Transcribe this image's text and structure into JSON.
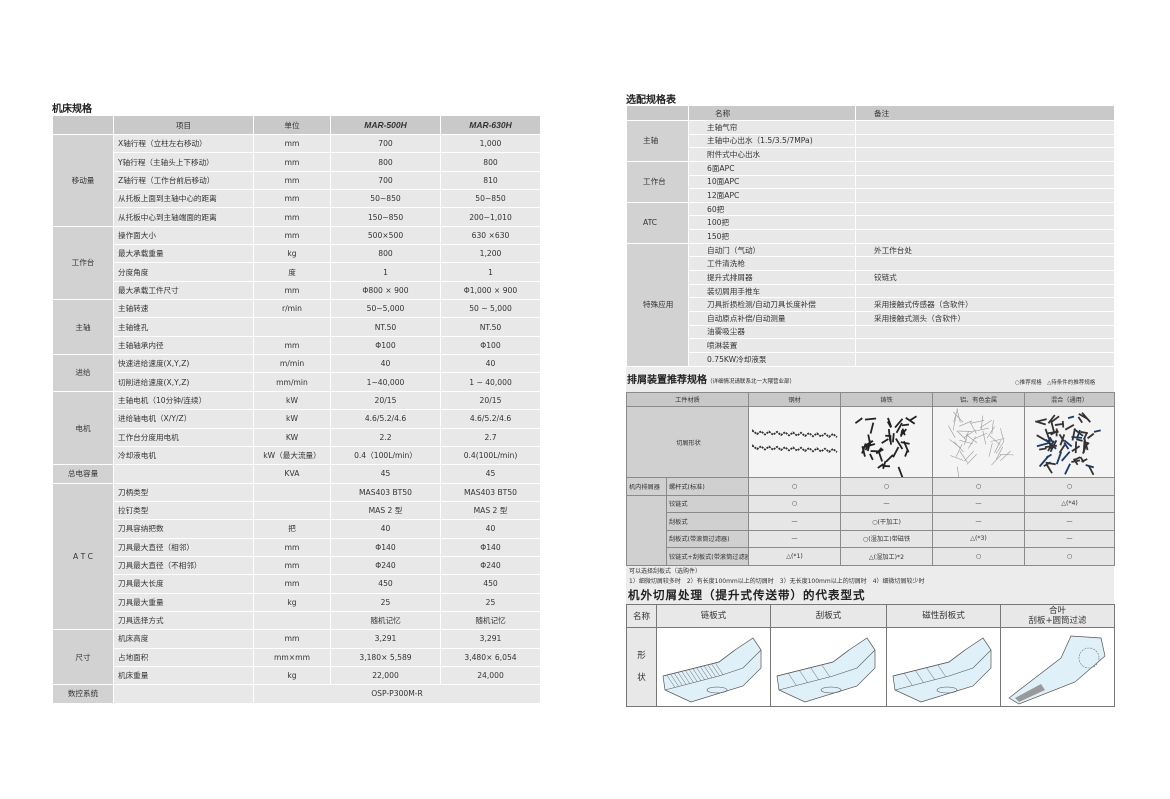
{
  "left": {
    "title": "机床规格",
    "headers": [
      "",
      "项目",
      "单位",
      "MAR-500H",
      "MAR-630H"
    ],
    "groups": [
      {
        "name": "移动量",
        "rows": [
          [
            "X轴行程（立柱左右移动）",
            "mm",
            "700",
            "1,000"
          ],
          [
            "Y轴行程（主轴头上下移动）",
            "mm",
            "800",
            "800"
          ],
          [
            "Z轴行程（工作台前后移动）",
            "mm",
            "700",
            "810"
          ],
          [
            "从托板上面到主轴中心的距离",
            "mm",
            "50~850",
            "50~850"
          ],
          [
            "从托板中心到主轴端面的距离",
            "mm",
            "150~850",
            "200~1,010"
          ]
        ]
      },
      {
        "name": "工作台",
        "rows": [
          [
            "操作面大小",
            "mm",
            "500×500",
            "630 ×630"
          ],
          [
            "最大承载重量",
            "kg",
            "800",
            "1,200"
          ],
          [
            "分度角度",
            "度",
            "1",
            "1"
          ],
          [
            "最大承载工件尺寸",
            "mm",
            "Φ800 × 900",
            "Φ1,000 × 900"
          ]
        ]
      },
      {
        "name": "主轴",
        "rows": [
          [
            "主轴转速",
            "r/min",
            "50~5,000",
            "50 ~ 5,000"
          ],
          [
            "主轴锥孔",
            "",
            "NT.50",
            "NT.50"
          ],
          [
            "主轴轴承内径",
            "mm",
            "Φ100",
            "Φ100"
          ]
        ]
      },
      {
        "name": "进给",
        "rows": [
          [
            "快速进给速度(X,Y,Z)",
            "m/min",
            "40",
            "40"
          ],
          [
            "切削进给速度(X,Y,Z)",
            "mm/min",
            "1~40,000",
            "1 ~ 40,000"
          ]
        ]
      },
      {
        "name": "电机",
        "rows": [
          [
            "主轴电机（10分钟/连续）",
            "kW",
            "20/15",
            "20/15"
          ],
          [
            "进给轴电机（X/Y/Z）",
            "kW",
            "4.6/5.2/4.6",
            "4.6/5.2/4.6"
          ],
          [
            "工作台分度用电机",
            "KW",
            "2.2",
            "2.7"
          ],
          [
            "冷却液电机",
            "kW（最大流量）",
            "0.4（100L/min）",
            "0.4(100L/min)"
          ]
        ]
      },
      {
        "name": "总电容量",
        "rows": [
          [
            "",
            "KVA",
            "45",
            "45"
          ]
        ]
      },
      {
        "name": "A T C",
        "rows": [
          [
            "刀柄类型",
            "",
            "MAS403 BT50",
            "MAS403 BT50"
          ],
          [
            "拉钉类型",
            "",
            "MAS 2 型",
            "MAS 2 型"
          ],
          [
            "刀具容纳把数",
            "把",
            "40",
            "40"
          ],
          [
            "刀具最大直径（相邻）",
            "mm",
            "Φ140",
            "Φ140"
          ],
          [
            "刀具最大直径（不相邻）",
            "mm",
            "Φ240",
            "Φ240"
          ],
          [
            "刀具最大长度",
            "mm",
            "450",
            "450"
          ],
          [
            "刀具最大重量",
            "kg",
            "25",
            "25"
          ],
          [
            "刀具选择方式",
            "",
            "随机记忆",
            "随机记忆"
          ]
        ]
      },
      {
        "name": "尺寸",
        "rows": [
          [
            "机床高度",
            "mm",
            "3,291",
            "3,291"
          ],
          [
            "占地面积",
            "mm×mm",
            "3,180× 5,589",
            "3,480× 6,054"
          ],
          [
            "机床重量",
            "kg",
            "22,000",
            "24,000"
          ]
        ]
      }
    ],
    "nc": {
      "name": "数控系统",
      "value": "OSP-P300M-R"
    }
  },
  "options": {
    "title": "选配规格表",
    "headers": [
      "",
      "名称",
      "备注"
    ],
    "groups": [
      {
        "name": "主轴",
        "rows": [
          [
            "主轴气帘",
            ""
          ],
          [
            "主轴中心出水（1.5/3.5/7MPa)",
            ""
          ],
          [
            "附件式中心出水",
            ""
          ]
        ]
      },
      {
        "name": "工作台",
        "rows": [
          [
            "6面APC",
            ""
          ],
          [
            "10面APC",
            ""
          ],
          [
            "12面APC",
            ""
          ]
        ]
      },
      {
        "name": "ATC",
        "rows": [
          [
            "60把",
            ""
          ],
          [
            "100把",
            ""
          ],
          [
            "150把",
            ""
          ]
        ]
      },
      {
        "name": "特殊应用",
        "rows": [
          [
            "自动门（气动）",
            "外工作台处"
          ],
          [
            "工件清洗枪",
            ""
          ],
          [
            "提升式排屑器",
            "铰链式"
          ],
          [
            "装切屑用手推车",
            ""
          ],
          [
            "刀具折损检测/自动刀具长度补偿",
            "采用接触式传感器（含软件）"
          ],
          [
            "自动原点补偿/自动测量",
            "采用接触式测头（含软件）"
          ],
          [
            "油雾吸尘器",
            ""
          ],
          [
            "喷淋装置",
            ""
          ],
          [
            "0.75KW冷却液泵",
            ""
          ]
        ]
      }
    ]
  },
  "chip": {
    "title": "排屑装置推荐规格",
    "subtitle": "（详细情况请联系北一大隈营业部）",
    "legend": {
      "recommended": "○推荐规格",
      "conditional": "△待条件的推荐规格"
    },
    "headers": [
      "工件材质",
      "钢材",
      "铸铁",
      "铝、有色金属",
      "混合（通用）"
    ],
    "shape_label": "切屑形状",
    "inner_label": "机内排屑器",
    "rows": [
      {
        "label": "螺杆式(标准)",
        "values": [
          "○",
          "○",
          "○",
          "○"
        ]
      },
      {
        "label": "铰链式",
        "values": [
          "○",
          "—",
          "—",
          "△(*4)"
        ]
      },
      {
        "label": "刮板式",
        "values": [
          "—",
          "○(干加工)",
          "—",
          "—"
        ]
      },
      {
        "label": "刮板式(带滚筒过滤器)",
        "values": [
          "—",
          "○(湿加工)带磁铁",
          "△(*3)",
          "—"
        ]
      },
      {
        "label": "铰链式+刮板式(带滚筒过滤器)",
        "values": [
          "△(*1)",
          "△(湿加工)*2",
          "○",
          "○"
        ]
      }
    ],
    "note1": "可以选择刮板式（选购件）",
    "note2": "1）细微切屑较多时　2）有长度100mm以上的切屑时　3）无长度100mm以上的切屑时　4）细微切屑较少时"
  },
  "conveyor": {
    "title": "机外切屑处理（提升式传送带）的代表型式",
    "name_label": "名称",
    "shape_label_1": "形",
    "shape_label_2": "状",
    "types": [
      "链板式",
      "刮板式",
      "磁性刮板式",
      "合叶\n刮板+圆筒过滤"
    ],
    "line_color": "#7a9aa8",
    "fill_color": "#dff0f8"
  }
}
